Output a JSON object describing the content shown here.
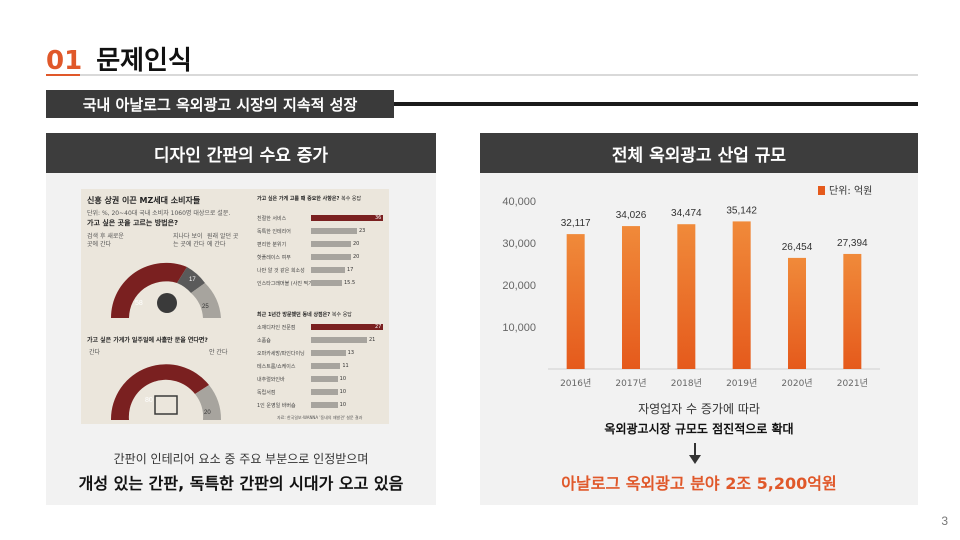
{
  "slide": {
    "number_label": "01",
    "title": "문제인식",
    "banner": "국내 아날로그 옥외광고 시장의 지속적 성장",
    "page_number": "3"
  },
  "left_panel": {
    "header": "디자인 간판의 수요 증가",
    "infographic": {
      "title": "신흥 상권 이끈 MZ세대 소비자들",
      "subtitle": "단위: %, 20~40대 국내 소비자 1060명 대상으로 설문.",
      "question1": "가고 싶은 곳을 고르는 방법은?",
      "q1_options": [
        "검색 후 새로운 곳에 간다",
        "지나다 보이는 곳에 간다",
        "원래 알던 곳에 간다"
      ],
      "q1_values": [
        58,
        17,
        25
      ],
      "question2": "가고 싶은 가게가 일주일에 사흘만 문을 연다면?",
      "q2_options": [
        "간다",
        "안 간다"
      ],
      "q2_values": [
        80,
        20
      ],
      "question3": "가고 싶은 가게 고를 때 중요한 사항은?",
      "q3_note": "복수 응답",
      "q3_items": [
        {
          "label": "친절한 서비스",
          "value": 36
        },
        {
          "label": "독특한 인테리어",
          "value": 23
        },
        {
          "label": "편리한 분위기",
          "value": 20
        },
        {
          "label": "핫플레이스 여부",
          "value": 20
        },
        {
          "label": "나만 알 것 같은 희소성",
          "value": 17
        },
        {
          "label": "인스타그래머블 (사진 찍기 좋은)",
          "value": 15.5
        }
      ],
      "question4": "최근 1년간 방문했던 동네 상점은?",
      "q4_note": "복수 응답",
      "q4_items": [
        {
          "label": "소재디자인 전문점",
          "value": 27
        },
        {
          "label": "소품숍",
          "value": 21
        },
        {
          "label": "오마카세방/파인다이닝",
          "value": 13
        },
        {
          "label": "테스트룸/쇼케이스",
          "value": 11
        },
        {
          "label": "내추럴와인바",
          "value": 10
        },
        {
          "label": "독립서점",
          "value": 10
        },
        {
          "label": "1인 운영일 바버숍",
          "value": 10
        }
      ],
      "source": "자료: 한국일보·WANNA '동네의 재발견' 설문 결과"
    },
    "caption": "간판이 인테리어 요소 중 주요 부분으로 인정받으며",
    "emphasis": "개성 있는 간판, 독특한 간판의 시대가 오고 있음"
  },
  "right_panel": {
    "header": "전체 옥외광고 산업 규모",
    "caption": "자영업자 수 증가에 따라",
    "caption2": "옥외광고시장 규모도 점진적으로 확대",
    "emphasis": "아날로그 옥외광고 분야 2조 5,200억원"
  },
  "chart_data": {
    "type": "bar",
    "categories": [
      "2016년",
      "2017년",
      "2018년",
      "2019년",
      "2020년",
      "2021년"
    ],
    "values": [
      32117,
      34026,
      34474,
      35142,
      26454,
      27394
    ],
    "value_labels": [
      "32,117",
      "34,026",
      "34,474",
      "35,142",
      "26,454",
      "27,394"
    ],
    "y_ticks": [
      "10,000",
      "20,000",
      "30,000",
      "40,000"
    ],
    "ylim": [
      0,
      40000
    ],
    "legend": "단위: 억원",
    "legend_position": "top-right",
    "grid": false,
    "colors": {
      "bar_top": "#f08a3a",
      "bar_bottom": "#e55a1c",
      "accent": "#e0582a"
    }
  }
}
